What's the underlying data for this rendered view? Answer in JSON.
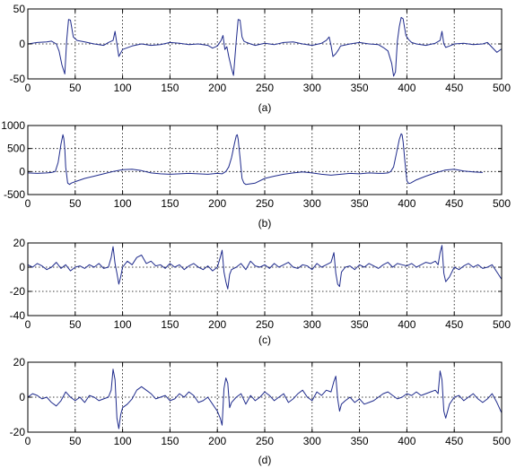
{
  "chart_data": [
    {
      "type": "line",
      "caption": "(a)",
      "xlim": [
        0,
        500
      ],
      "ylim": [
        -50,
        50
      ],
      "xticks": [
        0,
        50,
        100,
        150,
        200,
        250,
        300,
        350,
        400,
        450,
        500
      ],
      "yticks": [
        -50,
        0,
        50
      ],
      "yticks_labels": [
        "-50",
        "0",
        "50"
      ],
      "grid": true,
      "line_color": "#1f2b8c",
      "series": [
        {
          "x": [
            0,
            10,
            20,
            25,
            30,
            33,
            36,
            39,
            41,
            43,
            45,
            48,
            52,
            60,
            70,
            80,
            85,
            90,
            92,
            94,
            96,
            100,
            110,
            120,
            130,
            140,
            150,
            160,
            170,
            180,
            190,
            195,
            200,
            204,
            206,
            208,
            210,
            212,
            215,
            217,
            220,
            222,
            224,
            226,
            228,
            231,
            235,
            240,
            250,
            260,
            270,
            280,
            290,
            300,
            310,
            315,
            318,
            320,
            322,
            325,
            328,
            330,
            340,
            350,
            360,
            370,
            375,
            380,
            384,
            386,
            388,
            390,
            392,
            394,
            396,
            399,
            402,
            405,
            410,
            420,
            430,
            435,
            437,
            439,
            441,
            445,
            450,
            460,
            470,
            480,
            485,
            490,
            495,
            500
          ],
          "y": [
            0,
            2,
            3,
            4,
            0,
            -10,
            -30,
            -43,
            5,
            35,
            34,
            10,
            5,
            3,
            0,
            -2,
            2,
            5,
            18,
            0,
            -18,
            -8,
            -3,
            0,
            -2,
            -1,
            2,
            1,
            -1,
            0,
            -2,
            -6,
            -3,
            5,
            12,
            -8,
            -4,
            -18,
            -35,
            -45,
            5,
            35,
            34,
            10,
            4,
            2,
            0,
            -2,
            1,
            -1,
            2,
            3,
            0,
            -2,
            1,
            5,
            10,
            -2,
            -18,
            -14,
            -8,
            -3,
            0,
            2,
            0,
            -1,
            -5,
            -10,
            -28,
            -46,
            -40,
            4,
            25,
            38,
            36,
            12,
            6,
            2,
            0,
            -2,
            1,
            5,
            18,
            0,
            -5,
            -3,
            0,
            1,
            -1,
            0,
            2,
            -5,
            -12,
            -7
          ]
        }
      ]
    },
    {
      "type": "line",
      "caption": "(b)",
      "xlim": [
        0,
        500
      ],
      "ylim": [
        -500,
        1000
      ],
      "xticks": [
        0,
        50,
        100,
        150,
        200,
        250,
        300,
        350,
        400,
        450,
        500
      ],
      "yticks": [
        -500,
        0,
        500,
        1000
      ],
      "yticks_labels": [
        "-500",
        "0",
        "500",
        "1000"
      ],
      "grid": true,
      "line_color": "#1f2b8c",
      "series": [
        {
          "x": [
            0,
            10,
            20,
            25,
            29,
            32,
            35,
            37,
            38,
            39,
            40,
            42,
            44,
            46,
            50,
            60,
            70,
            80,
            90,
            100,
            110,
            120,
            130,
            140,
            150,
            160,
            170,
            180,
            190,
            200,
            205,
            209,
            212,
            215,
            218,
            220,
            221,
            222,
            224,
            226,
            228,
            230,
            240,
            250,
            260,
            270,
            280,
            290,
            300,
            310,
            320,
            330,
            340,
            350,
            360,
            370,
            375,
            380,
            383,
            386,
            389,
            392,
            394,
            395,
            396,
            398,
            400,
            402,
            404,
            410,
            420,
            430,
            440,
            450,
            460,
            470,
            480
          ],
          "y": [
            -30,
            -40,
            -30,
            -20,
            0,
            200,
            600,
            800,
            720,
            500,
            100,
            -250,
            -280,
            -250,
            -220,
            -150,
            -100,
            -50,
            0,
            40,
            50,
            20,
            -30,
            -50,
            -60,
            -50,
            -40,
            -50,
            -60,
            -40,
            -50,
            0,
            100,
            300,
            600,
            780,
            800,
            700,
            300,
            -150,
            -250,
            -280,
            -250,
            -150,
            -100,
            -60,
            -30,
            -10,
            -30,
            -60,
            -80,
            -60,
            -40,
            -50,
            -30,
            -40,
            -40,
            -30,
            0,
            100,
            400,
            700,
            820,
            800,
            650,
            200,
            -200,
            -260,
            -250,
            -180,
            -100,
            -30,
            30,
            50,
            10,
            -10,
            -20
          ]
        }
      ]
    },
    {
      "type": "line",
      "caption": "(c)",
      "xlim": [
        0,
        500
      ],
      "ylim": [
        -40,
        20
      ],
      "xticks": [
        0,
        50,
        100,
        150,
        200,
        250,
        300,
        350,
        400,
        450,
        500
      ],
      "yticks": [
        -40,
        -20,
        0,
        20
      ],
      "yticks_labels": [
        "-40",
        "-20",
        "0",
        "20"
      ],
      "grid": true,
      "line_color": "#1f2b8c",
      "series": [
        {
          "x": [
            0,
            5,
            10,
            15,
            20,
            25,
            30,
            35,
            40,
            45,
            50,
            55,
            60,
            65,
            70,
            75,
            80,
            85,
            88,
            90,
            92,
            94,
            96,
            98,
            100,
            105,
            110,
            115,
            120,
            125,
            130,
            135,
            140,
            145,
            150,
            155,
            160,
            165,
            170,
            175,
            180,
            185,
            190,
            195,
            200,
            203,
            205,
            207,
            209,
            211,
            213,
            215,
            220,
            225,
            230,
            235,
            240,
            245,
            250,
            255,
            260,
            265,
            270,
            275,
            280,
            285,
            290,
            295,
            300,
            305,
            310,
            315,
            320,
            323,
            325,
            327,
            329,
            331,
            335,
            340,
            345,
            350,
            355,
            360,
            365,
            370,
            375,
            380,
            385,
            390,
            395,
            400,
            405,
            410,
            415,
            420,
            425,
            430,
            433,
            435,
            437,
            439,
            441,
            445,
            450,
            455,
            460,
            465,
            470,
            475,
            480,
            485,
            490,
            495,
            500
          ],
          "y": [
            2,
            0,
            3,
            1,
            -2,
            0,
            4,
            -1,
            2,
            -3,
            0,
            1,
            -1,
            2,
            0,
            3,
            -1,
            0,
            8,
            17,
            3,
            -5,
            -14,
            -8,
            0,
            5,
            2,
            8,
            10,
            3,
            5,
            1,
            2,
            -1,
            3,
            0,
            2,
            -2,
            1,
            3,
            0,
            -2,
            1,
            -3,
            0,
            8,
            14,
            -4,
            -12,
            -18,
            -6,
            -2,
            0,
            3,
            -2,
            5,
            1,
            0,
            2,
            -1,
            3,
            0,
            2,
            4,
            0,
            -1,
            2,
            1,
            -2,
            3,
            0,
            2,
            4,
            12,
            -5,
            -14,
            -16,
            -4,
            0,
            1,
            -2,
            2,
            0,
            3,
            1,
            -1,
            2,
            4,
            0,
            3,
            2,
            1,
            3,
            0,
            2,
            4,
            3,
            5,
            2,
            12,
            18,
            -5,
            -12,
            -8,
            0,
            -2,
            1,
            3,
            0,
            2,
            -1,
            0,
            2,
            -4,
            -10
          ]
        }
      ]
    },
    {
      "type": "line",
      "caption": "(d)",
      "xlim": [
        0,
        500
      ],
      "ylim": [
        -20,
        20
      ],
      "xticks": [
        0,
        50,
        100,
        150,
        200,
        250,
        300,
        350,
        400,
        450,
        500
      ],
      "yticks": [
        -20,
        0,
        20
      ],
      "yticks_labels": [
        "-20",
        "0",
        "20"
      ],
      "grid": true,
      "line_color": "#1f2b8c",
      "series": [
        {
          "x": [
            0,
            5,
            10,
            15,
            20,
            25,
            30,
            35,
            40,
            45,
            50,
            55,
            60,
            65,
            70,
            75,
            80,
            85,
            88,
            90,
            92,
            94,
            96,
            98,
            100,
            105,
            110,
            115,
            120,
            125,
            130,
            135,
            140,
            145,
            150,
            155,
            160,
            165,
            170,
            175,
            180,
            185,
            190,
            195,
            200,
            203,
            205,
            207,
            209,
            211,
            213,
            215,
            220,
            225,
            230,
            235,
            240,
            245,
            250,
            255,
            260,
            265,
            270,
            275,
            280,
            285,
            290,
            295,
            300,
            305,
            310,
            315,
            320,
            323,
            325,
            327,
            329,
            331,
            335,
            340,
            345,
            350,
            355,
            360,
            365,
            370,
            375,
            380,
            385,
            390,
            395,
            400,
            405,
            410,
            415,
            420,
            425,
            430,
            433,
            435,
            437,
            439,
            441,
            445,
            450,
            455,
            460,
            465,
            470,
            475,
            480,
            485,
            490,
            495,
            500
          ],
          "y": [
            0,
            2,
            1,
            -1,
            0,
            -3,
            -5,
            -2,
            3,
            0,
            -2,
            0,
            -3,
            1,
            0,
            -2,
            -1,
            0,
            4,
            16,
            10,
            -12,
            -18,
            -10,
            -6,
            -4,
            -1,
            4,
            6,
            4,
            2,
            -1,
            0,
            1,
            -2,
            -1,
            2,
            0,
            3,
            1,
            -3,
            -2,
            0,
            -4,
            -8,
            -12,
            -16,
            5,
            11,
            8,
            -6,
            -3,
            0,
            2,
            -4,
            1,
            -2,
            0,
            3,
            1,
            -2,
            0,
            2,
            -3,
            -1,
            2,
            4,
            0,
            -2,
            3,
            1,
            4,
            3,
            9,
            12,
            -1,
            -8,
            -4,
            -2,
            0,
            -3,
            -1,
            -4,
            -3,
            -2,
            0,
            2,
            3,
            1,
            -1,
            0,
            2,
            1,
            3,
            1,
            2,
            3,
            4,
            2,
            15,
            10,
            -8,
            -12,
            -4,
            0,
            1,
            -2,
            0,
            2,
            -1,
            -3,
            -1,
            2,
            -3,
            -9
          ]
        }
      ]
    }
  ]
}
